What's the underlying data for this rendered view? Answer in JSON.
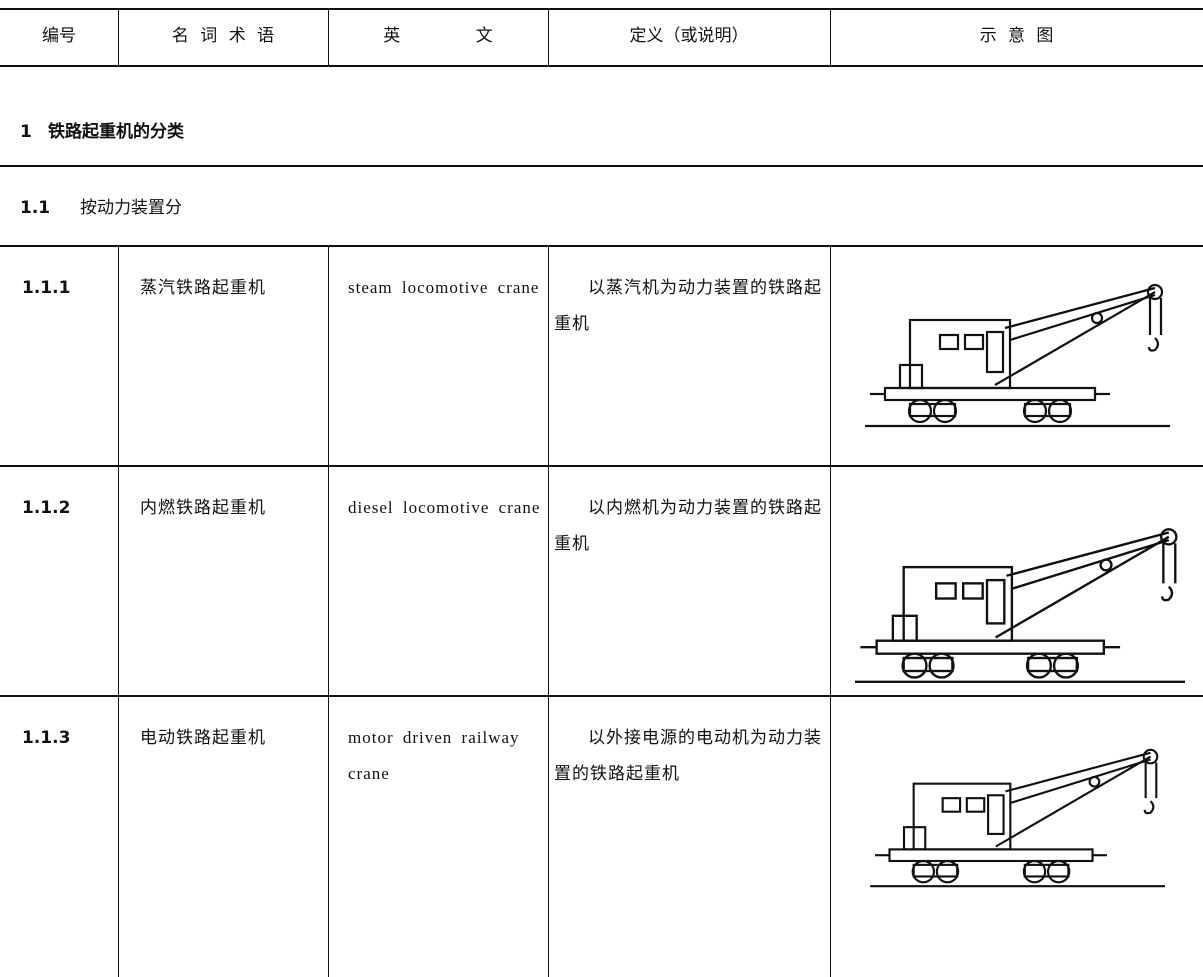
{
  "header": {
    "columns": [
      "编号",
      "名 词 术 语",
      "英 文",
      "定义（或说明）",
      "示 意 图"
    ]
  },
  "sections": [
    {
      "number": "1",
      "title": "铁路起重机的分类"
    },
    {
      "number": "1.1",
      "title": "按动力装置分"
    }
  ],
  "rows": [
    {
      "number": "1.1.1",
      "term": "蒸汽铁路起重机",
      "english": "steam locomotive crane",
      "definition": "以蒸汽机为动力装置的铁路起重机"
    },
    {
      "number": "1.1.2",
      "term": "内燃铁路起重机",
      "english": "diesel locomotive crane",
      "definition": "以内燃机为动力装置的铁路起重机"
    },
    {
      "number": "1.1.3",
      "term": "电动铁路起重机",
      "english": "motor driven railway crane",
      "definition": "以外接电源的电动机为动力装置的铁路起重机"
    }
  ]
}
